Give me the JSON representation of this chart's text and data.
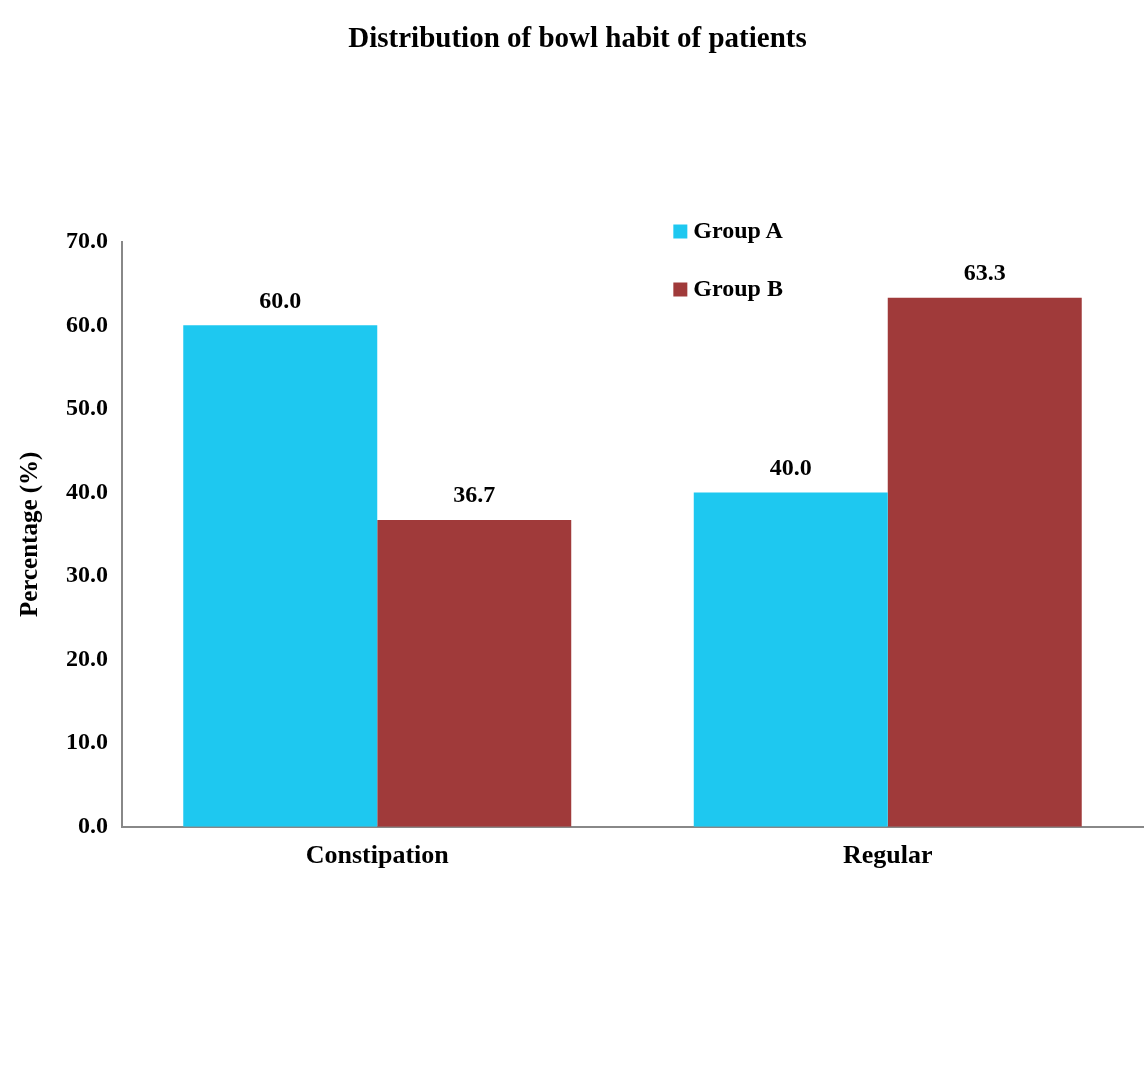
{
  "chart_data": {
    "type": "bar",
    "title": "Distribution of bowl habit of patients",
    "ylabel": "Percentage (%)",
    "categories": [
      "Constipation",
      "Regular"
    ],
    "series": [
      {
        "name": "Group A",
        "color": "#1ec8f0",
        "values": [
          60,
          40
        ],
        "value_labels": [
          "60.0",
          "40.0"
        ]
      },
      {
        "name": "Group B",
        "color": "#a03a3a",
        "values": [
          36.7,
          63.3
        ],
        "value_labels": [
          "36.7",
          "63.3"
        ]
      }
    ],
    "ylim": [
      0,
      70
    ],
    "yticks": [
      {
        "value": 0,
        "label": "0.0"
      },
      {
        "value": 10,
        "label": "10.0"
      },
      {
        "value": 20,
        "label": "20.0"
      },
      {
        "value": 30,
        "label": "30.0"
      },
      {
        "value": 40,
        "label": "40.0"
      },
      {
        "value": 50,
        "label": "50.0"
      },
      {
        "value": 60,
        "label": "60.0"
      },
      {
        "value": 70,
        "label": "70.0"
      }
    ],
    "grid": false,
    "legend": "top right"
  }
}
